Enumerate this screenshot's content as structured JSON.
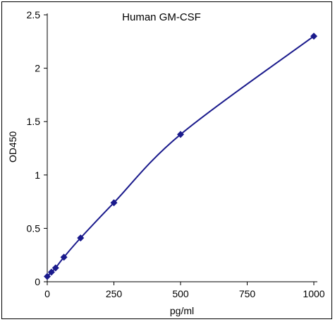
{
  "chart_data": {
    "type": "line",
    "title": "Human GM-CSF",
    "xlabel": "pg/ml",
    "ylabel": "OD450",
    "xlim": [
      0,
      1000
    ],
    "ylim": [
      0,
      2.5
    ],
    "x_ticks": [
      0,
      250,
      500,
      750,
      1000
    ],
    "y_ticks": [
      0,
      0.5,
      1,
      1.5,
      2,
      2.5
    ],
    "x_tick_labels": [
      "0",
      "250",
      "500",
      "750",
      "1000"
    ],
    "y_tick_labels": [
      "0",
      "0.5",
      "1",
      "1.5",
      "2",
      "2.5"
    ],
    "grid": false,
    "legend": false,
    "marker": "diamond",
    "color": "#1a1a8c",
    "series": [
      {
        "x": [
          0,
          15.6,
          31.25,
          62.5,
          125,
          250,
          500,
          1000
        ],
        "y": [
          0.05,
          0.09,
          0.13,
          0.23,
          0.41,
          0.74,
          1.38,
          2.3
        ]
      }
    ]
  }
}
